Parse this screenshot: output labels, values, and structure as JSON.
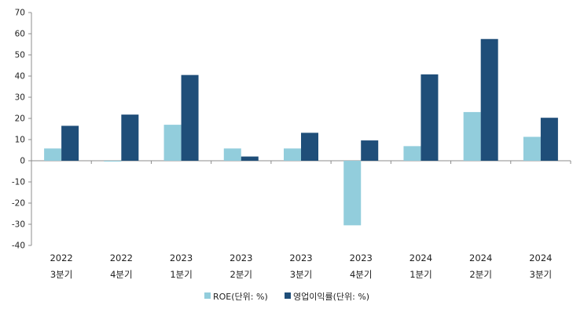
{
  "chart_data": {
    "type": "bar",
    "categories": [
      [
        "2022",
        "3분기"
      ],
      [
        "2022",
        "4분기"
      ],
      [
        "2023",
        "1분기"
      ],
      [
        "2023",
        "2분기"
      ],
      [
        "2023",
        "3분기"
      ],
      [
        "2023",
        "4분기"
      ],
      [
        "2024",
        "1분기"
      ],
      [
        "2024",
        "2분기"
      ],
      [
        "2024",
        "3분기"
      ]
    ],
    "series": [
      {
        "name": "ROE(단위: %)",
        "color": "#92cddc",
        "values": [
          5.8,
          -0.4,
          17.0,
          5.8,
          5.8,
          -30.5,
          6.9,
          23.0,
          11.3
        ]
      },
      {
        "name": "영업이익률(단위: %)",
        "color": "#1f4e79",
        "values": [
          16.5,
          21.8,
          40.5,
          2.0,
          13.2,
          9.6,
          40.8,
          57.5,
          20.3
        ]
      }
    ],
    "ylim": [
      -40,
      70
    ],
    "yticks": [
      -40,
      -30,
      -20,
      -10,
      0,
      10,
      20,
      30,
      40,
      50,
      60,
      70
    ],
    "xlabel": "",
    "ylabel": "",
    "grid": false,
    "legend_position": "bottom"
  }
}
